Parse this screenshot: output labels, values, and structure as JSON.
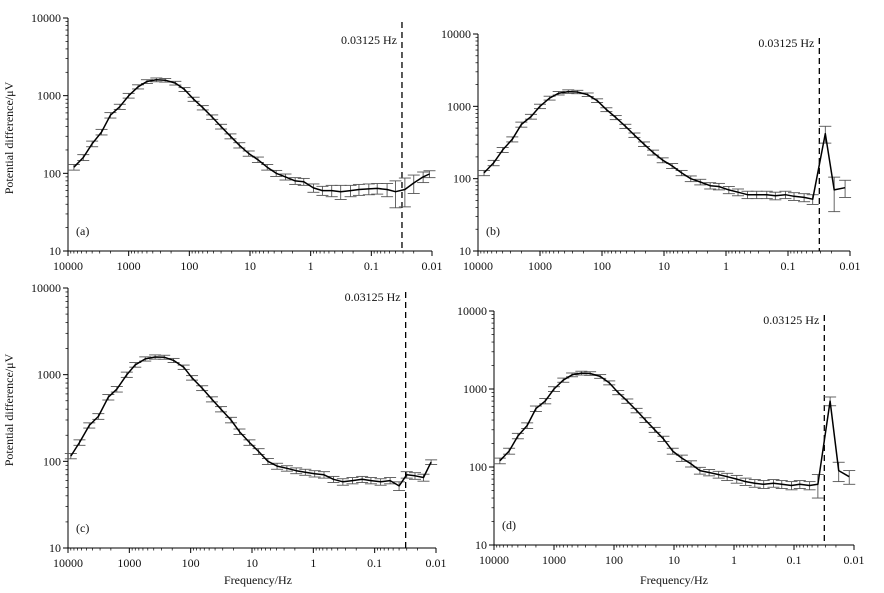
{
  "figure": {
    "shared_ylabel": "Potential difference/μV",
    "shared_xlabel": "Frequency/Hz"
  },
  "chart_data": [
    {
      "type": "line",
      "panel_label": "(a)",
      "xlabel": "",
      "ylabel": "Potential difference/μV",
      "x_scale": "log",
      "y_scale": "log",
      "x_reversed": true,
      "xlim": [
        10000,
        0.01
      ],
      "ylim": [
        10,
        10000
      ],
      "x_tick_labels": [
        "10000",
        "1000",
        "100",
        "10",
        "1",
        "0.1",
        "0.01"
      ],
      "y_tick_labels": [
        "10",
        "100",
        "1000",
        "10000"
      ],
      "reference_line": {
        "x": 0.03125,
        "label": "0.03125 Hz"
      },
      "series": [
        {
          "x": [
            8000,
            5600,
            4000,
            2800,
            2000,
            1400,
            1000,
            700,
            500,
            350,
            250,
            170,
            120,
            85,
            60,
            42,
            30,
            21,
            15,
            10.5,
            7.4,
            5.2,
            3.7,
            2.6,
            1.8,
            1.3,
            0.9,
            0.64,
            0.45,
            0.32,
            0.22,
            0.16,
            0.11,
            0.08,
            0.055,
            0.04,
            0.028,
            0.02,
            0.014,
            0.011
          ],
          "y": [
            120,
            160,
            240,
            340,
            560,
            720,
            1000,
            1300,
            1520,
            1600,
            1580,
            1450,
            1200,
            900,
            700,
            530,
            400,
            300,
            230,
            180,
            150,
            120,
            100,
            90,
            80,
            78,
            65,
            60,
            60,
            58,
            60,
            62,
            63,
            64,
            62,
            58,
            62,
            75,
            90,
            98
          ],
          "error": [
            10,
            14,
            20,
            28,
            45,
            55,
            70,
            80,
            85,
            90,
            85,
            80,
            70,
            55,
            45,
            35,
            28,
            22,
            18,
            14,
            12,
            10,
            9,
            8,
            8,
            8,
            8,
            8,
            10,
            12,
            10,
            10,
            10,
            10,
            12,
            22,
            25,
            20,
            14,
            10
          ]
        }
      ]
    },
    {
      "type": "line",
      "panel_label": "(b)",
      "xlabel": "",
      "ylabel": "",
      "x_scale": "log",
      "y_scale": "log",
      "x_reversed": true,
      "xlim": [
        10000,
        0.01
      ],
      "ylim": [
        10,
        10000
      ],
      "x_tick_labels": [
        "10000",
        "1000",
        "100",
        "10",
        "1",
        "0.1",
        "0.01"
      ],
      "y_tick_labels": [
        "10",
        "100",
        "1000",
        "10000"
      ],
      "reference_line": {
        "x": 0.03125,
        "label": "0.03125 Hz"
      },
      "series": [
        {
          "x": [
            8000,
            5600,
            4000,
            2800,
            2000,
            1400,
            1000,
            700,
            500,
            350,
            250,
            170,
            120,
            85,
            60,
            42,
            30,
            21,
            15,
            10.5,
            7.4,
            5.2,
            3.7,
            2.6,
            1.8,
            1.3,
            0.9,
            0.64,
            0.45,
            0.32,
            0.22,
            0.16,
            0.11,
            0.08,
            0.055,
            0.04,
            0.025,
            0.018,
            0.012
          ],
          "y": [
            120,
            165,
            250,
            350,
            560,
            720,
            1000,
            1300,
            1520,
            1600,
            1580,
            1450,
            1200,
            900,
            700,
            530,
            400,
            300,
            230,
            180,
            150,
            120,
            100,
            90,
            80,
            78,
            70,
            65,
            60,
            60,
            60,
            58,
            60,
            57,
            55,
            52,
            420,
            70,
            75
          ],
          "error": [
            10,
            14,
            20,
            28,
            45,
            55,
            70,
            80,
            85,
            90,
            85,
            80,
            70,
            55,
            45,
            35,
            28,
            22,
            18,
            14,
            12,
            10,
            9,
            8,
            8,
            8,
            8,
            7,
            7,
            7,
            7,
            7,
            7,
            7,
            7,
            8,
            110,
            35,
            20
          ]
        }
      ]
    },
    {
      "type": "line",
      "panel_label": "(c)",
      "xlabel": "Frequency/Hz",
      "ylabel": "Potential difference/μV",
      "x_scale": "log",
      "y_scale": "log",
      "x_reversed": true,
      "xlim": [
        10000,
        0.01
      ],
      "ylim": [
        10,
        10000
      ],
      "x_tick_labels": [
        "10000",
        "1000",
        "100",
        "10",
        "1",
        "0.1",
        "0.01"
      ],
      "y_tick_labels": [
        "10",
        "100",
        "1000",
        "10000"
      ],
      "reference_line": {
        "x": 0.03125,
        "label": "0.03125 Hz"
      },
      "series": [
        {
          "x": [
            9000,
            6500,
            4500,
            3200,
            2200,
            1600,
            1100,
            800,
            550,
            380,
            270,
            190,
            130,
            95,
            65,
            45,
            32,
            22,
            16,
            11,
            7.8,
            5.5,
            3.9,
            2.7,
            1.9,
            1.35,
            0.95,
            0.67,
            0.47,
            0.33,
            0.23,
            0.16,
            0.115,
            0.08,
            0.056,
            0.04,
            0.03,
            0.022,
            0.016,
            0.012
          ],
          "y": [
            115,
            165,
            260,
            330,
            550,
            680,
            1000,
            1300,
            1520,
            1600,
            1590,
            1460,
            1220,
            920,
            700,
            520,
            400,
            300,
            220,
            165,
            130,
            100,
            88,
            83,
            78,
            75,
            72,
            70,
            62,
            58,
            60,
            62,
            60,
            58,
            60,
            52,
            70,
            68,
            65,
            98
          ],
          "error": [
            8,
            12,
            18,
            25,
            40,
            50,
            70,
            80,
            85,
            90,
            85,
            80,
            70,
            55,
            45,
            35,
            28,
            22,
            16,
            12,
            10,
            8,
            7,
            6,
            6,
            6,
            6,
            6,
            5,
            5,
            5,
            5,
            5,
            5,
            5,
            6,
            6,
            6,
            6,
            6
          ]
        }
      ]
    },
    {
      "type": "line",
      "panel_label": "(d)",
      "xlabel": "Frequency/Hz",
      "ylabel": "",
      "x_scale": "log",
      "y_scale": "log",
      "x_reversed": true,
      "xlim": [
        10000,
        0.01
      ],
      "ylim": [
        10,
        10000
      ],
      "x_tick_labels": [
        "10000",
        "1000",
        "100",
        "10",
        "1",
        "0.1",
        "0.01"
      ],
      "y_tick_labels": [
        "10",
        "100",
        "1000",
        "10000"
      ],
      "reference_line": {
        "x": 0.03125,
        "label": "0.03125 Hz"
      },
      "series": [
        {
          "x": [
            8000,
            5600,
            4000,
            2800,
            2000,
            1400,
            1000,
            700,
            500,
            350,
            250,
            170,
            120,
            85,
            60,
            42,
            30,
            21,
            15,
            10.5,
            7.4,
            5.2,
            3.7,
            2.6,
            1.8,
            1.3,
            0.9,
            0.64,
            0.45,
            0.32,
            0.22,
            0.16,
            0.11,
            0.08,
            0.055,
            0.04,
            0.025,
            0.018,
            0.012
          ],
          "y": [
            120,
            160,
            250,
            340,
            560,
            700,
            1000,
            1300,
            1520,
            1600,
            1580,
            1450,
            1200,
            900,
            700,
            530,
            400,
            300,
            230,
            160,
            130,
            110,
            90,
            85,
            80,
            75,
            70,
            65,
            62,
            60,
            62,
            60,
            58,
            60,
            58,
            60,
            700,
            90,
            75
          ],
          "error": [
            10,
            14,
            20,
            28,
            45,
            55,
            70,
            80,
            85,
            90,
            85,
            80,
            70,
            55,
            45,
            35,
            28,
            22,
            18,
            14,
            12,
            10,
            9,
            8,
            8,
            8,
            8,
            7,
            7,
            7,
            7,
            7,
            7,
            7,
            7,
            20,
            90,
            25,
            15
          ]
        }
      ]
    }
  ]
}
